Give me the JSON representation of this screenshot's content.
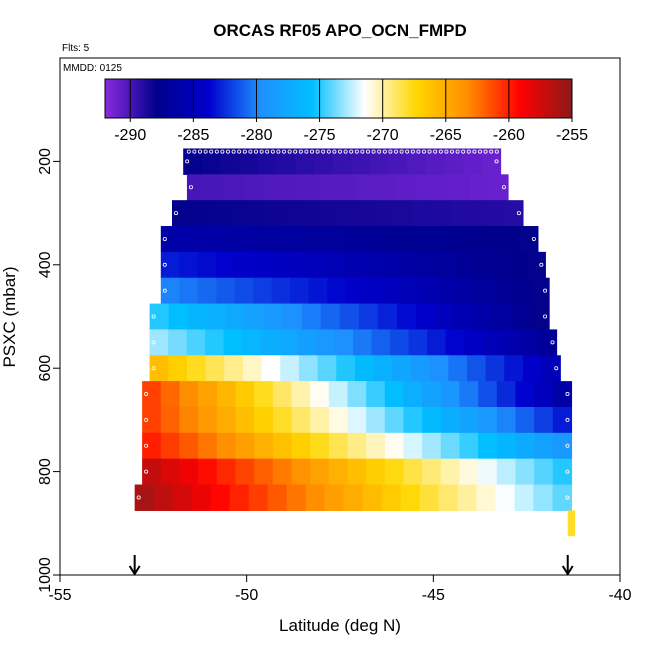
{
  "chart_data": {
    "type": "heatmap",
    "title": "ORCAS RF05 APO_OCN_FMPD",
    "flights_note": "Flts: 5",
    "date_note": "MMDD: 0125",
    "xlabel": "Latitude (deg N)",
    "ylabel": "PSXC (mbar)",
    "xlim": [
      -55,
      -40
    ],
    "ylim": [
      1000,
      0
    ],
    "y_reversed": true,
    "x_ticks": [
      -55,
      -50,
      -45,
      -40
    ],
    "y_ticks": [
      200,
      400,
      600,
      800,
      1000
    ],
    "colorbar": {
      "min": -292,
      "max": -255,
      "ticks": [
        -290,
        -285,
        -280,
        -275,
        -270,
        -265,
        -260,
        -255
      ],
      "colors": [
        "#8a2be2",
        "#00008b",
        "#0000cd",
        "#1e90ff",
        "#00bfff",
        "#ffffff",
        "#ffd700",
        "#ff8c00",
        "#ff0000",
        "#8b1a1a"
      ]
    },
    "pressure_bands": [
      {
        "p_top": 175,
        "p_bot": 225,
        "lat_start": -51.7,
        "lat_end": -43.2,
        "values_start": -288,
        "values_end": -291
      },
      {
        "p_top": 225,
        "p_bot": 275,
        "lat_start": -51.6,
        "lat_end": -43.0,
        "values_start": -290,
        "values_end": -291
      },
      {
        "p_top": 275,
        "p_bot": 325,
        "lat_start": -52.0,
        "lat_end": -42.6,
        "values_start": -288,
        "values_end": -289
      },
      {
        "p_top": 325,
        "p_bot": 375,
        "lat_start": -52.3,
        "lat_end": -42.2,
        "values_start": -286,
        "values_end": -288
      },
      {
        "p_top": 375,
        "p_bot": 425,
        "lat_start": -52.3,
        "lat_end": -42.0,
        "values_start": -283,
        "values_end": -288
      },
      {
        "p_top": 425,
        "p_bot": 475,
        "lat_start": -52.3,
        "lat_end": -41.9,
        "values_start": -280,
        "values_end": -288
      },
      {
        "p_top": 475,
        "p_bot": 525,
        "lat_start": -52.6,
        "lat_end": -41.9,
        "values_start": -275,
        "values_end": -288
      },
      {
        "p_top": 525,
        "p_bot": 575,
        "lat_start": -52.6,
        "lat_end": -41.7,
        "values_start": -273,
        "values_end": -287
      },
      {
        "p_top": 575,
        "p_bot": 625,
        "lat_start": -52.6,
        "lat_end": -41.6,
        "values_start": -266,
        "values_end": -285
      },
      {
        "p_top": 625,
        "p_bot": 675,
        "lat_start": -52.8,
        "lat_end": -41.3,
        "values_start": -261,
        "values_end": -286
      },
      {
        "p_top": 675,
        "p_bot": 725,
        "lat_start": -52.8,
        "lat_end": -41.3,
        "values_start": -261,
        "values_end": -283
      },
      {
        "p_top": 725,
        "p_bot": 775,
        "lat_start": -52.8,
        "lat_end": -41.3,
        "values_start": -260,
        "values_end": -279
      },
      {
        "p_top": 775,
        "p_bot": 825,
        "lat_start": -52.8,
        "lat_end": -41.3,
        "values_start": -257,
        "values_end": -275
      },
      {
        "p_top": 825,
        "p_bot": 875,
        "lat_start": -53.0,
        "lat_end": -41.3,
        "values_start": -256,
        "values_end": -274
      }
    ],
    "isolated_cells": [
      {
        "lat_start": -41.4,
        "lat_end": -41.2,
        "p_top": 875,
        "p_bot": 925,
        "value": -268
      }
    ],
    "flight_track_points": [
      {
        "lat": -53.0,
        "p": 600
      },
      {
        "lat": -41.3,
        "p": 600
      }
    ],
    "arrow_markers_lat": [
      -53.0,
      -41.4
    ],
    "grid": false,
    "legend_position": "top"
  }
}
